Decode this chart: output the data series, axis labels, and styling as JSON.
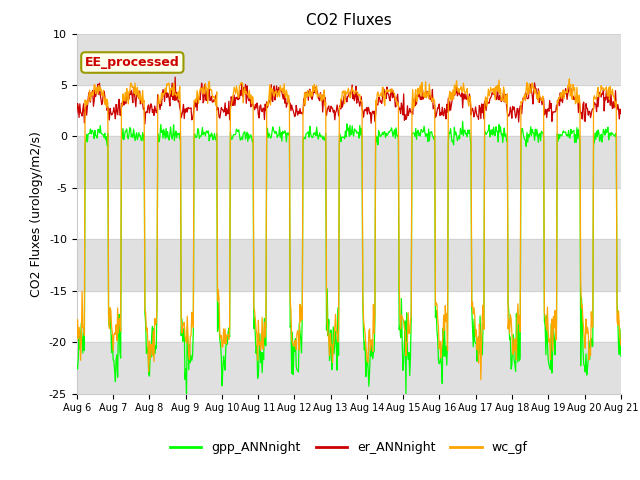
{
  "title": "CO2 Fluxes",
  "ylabel": "CO2 Fluxes (urology/m2/s)",
  "ylim": [
    -25,
    10
  ],
  "yticks": [
    -25,
    -20,
    -15,
    -10,
    -5,
    0,
    5,
    10
  ],
  "xstart_day": 6,
  "xend_day": 21,
  "n_days": 15,
  "points_per_day": 48,
  "colors": {
    "gpp": "#00ff00",
    "er": "#cc0000",
    "wc": "#ffa500"
  },
  "legend_labels": [
    "gpp_ANNnight",
    "er_ANNnight",
    "wc_gf"
  ],
  "annotation_text": "EE_processed",
  "annotation_color": "#cc0000",
  "annotation_bg": "#ffffee",
  "background_band_color": "#e0e0e0",
  "title_fontsize": 11,
  "label_fontsize": 9,
  "tick_fontsize": 8
}
